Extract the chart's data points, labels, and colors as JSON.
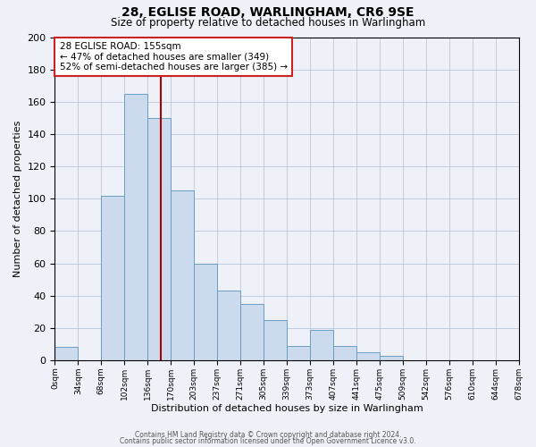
{
  "title": "28, EGLISE ROAD, WARLINGHAM, CR6 9SE",
  "subtitle": "Size of property relative to detached houses in Warlingham",
  "xlabel": "Distribution of detached houses by size in Warlingham",
  "ylabel": "Number of detached properties",
  "bar_color": "#ccdaed",
  "bar_edge_color": "#6b9dc4",
  "bin_labels": [
    "0sqm",
    "34sqm",
    "68sqm",
    "102sqm",
    "136sqm",
    "170sqm",
    "203sqm",
    "237sqm",
    "271sqm",
    "305sqm",
    "339sqm",
    "373sqm",
    "407sqm",
    "441sqm",
    "475sqm",
    "509sqm",
    "542sqm",
    "576sqm",
    "610sqm",
    "644sqm",
    "678sqm"
  ],
  "bar_heights": [
    8,
    0,
    102,
    165,
    150,
    105,
    60,
    43,
    35,
    25,
    9,
    19,
    9,
    5,
    3,
    0,
    0,
    0,
    0,
    0
  ],
  "ylim": [
    0,
    200
  ],
  "yticks": [
    0,
    20,
    40,
    60,
    80,
    100,
    120,
    140,
    160,
    180,
    200
  ],
  "vline_color": "#aa0000",
  "annotation_line1": "28 EGLISE ROAD: 155sqm",
  "annotation_line2": "← 47% of detached houses are smaller (349)",
  "annotation_line3": "52% of semi-detached houses are larger (385) →",
  "footer1": "Contains HM Land Registry data © Crown copyright and database right 2024.",
  "footer2": "Contains public sector information licensed under the Open Government Licence v3.0.",
  "background_color": "#eef2f8",
  "grid_color": "#b0bfd4",
  "figsize": [
    6.0,
    5.0
  ],
  "dpi": 100
}
